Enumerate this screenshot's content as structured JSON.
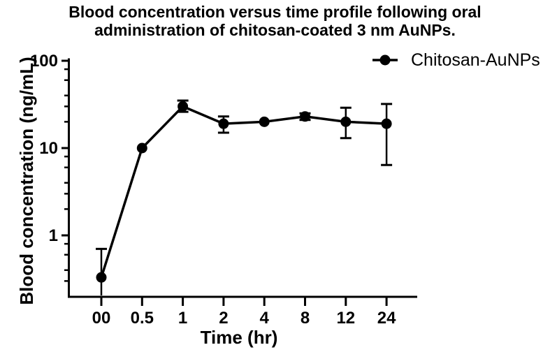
{
  "page": {
    "background": "#ffffff"
  },
  "title": {
    "line1": "Blood concentration versus time profile following oral",
    "line2": "administration of chitosan-coated 3 nm AuNPs."
  },
  "legend": {
    "label": "Chitosan-AuNPs",
    "marker": "filled-circle",
    "position": "top-right"
  },
  "colors": {
    "series": "#000000",
    "text": "#000000",
    "axis": "#000000",
    "background": "#ffffff"
  },
  "chart_data": {
    "type": "line",
    "title": "Blood concentration versus time profile following oral administration of chitosan-coated 3 nm AuNPs.",
    "xlabel": "Time (hr)",
    "ylabel": "Blood concentration (ng/mL)",
    "x_scale": "categorical",
    "y_scale": "log10",
    "ylim": [
      0.2,
      100
    ],
    "y_major_ticks": [
      100,
      10,
      1
    ],
    "y_minor_ticks": [
      80,
      60,
      40,
      30,
      20,
      8,
      6,
      4,
      3,
      2,
      0.8,
      0.6,
      0.4,
      0.3
    ],
    "grid": false,
    "categories": [
      "00",
      "0.5",
      "1",
      "2",
      "4",
      "8",
      "12",
      "24"
    ],
    "series": [
      {
        "name": "Chitosan-AuNPs",
        "units": "ng/mL",
        "values": [
          0.33,
          10,
          30,
          19,
          20,
          23,
          20,
          19
        ],
        "error_high": [
          0.7,
          null,
          35,
          23,
          null,
          25,
          29,
          32
        ],
        "error_low": [
          null,
          null,
          26,
          15,
          null,
          21,
          13,
          6.4
        ],
        "error_low_clipped": [
          true,
          false,
          false,
          false,
          false,
          false,
          false,
          false
        ]
      }
    ],
    "legend_position": "top-right"
  }
}
